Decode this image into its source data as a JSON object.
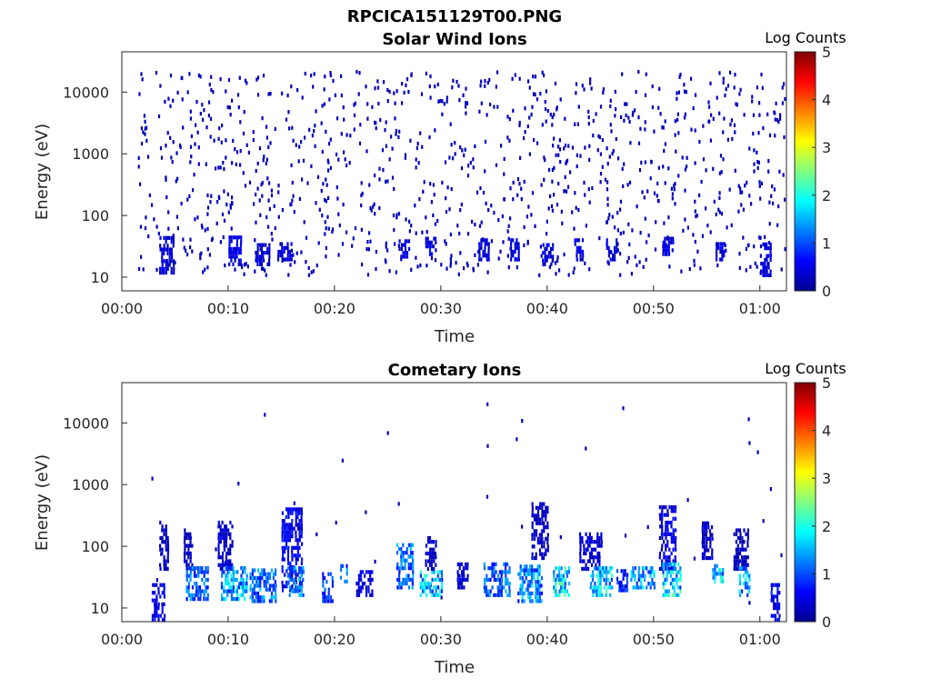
{
  "figure_title": "RPCICA151129T00.PNG",
  "colorbar": {
    "label": "Log Counts",
    "ticks": [
      "0",
      "1",
      "2",
      "3",
      "4",
      "5"
    ],
    "colormap": "jet"
  },
  "chart_data": [
    {
      "type": "heatmap",
      "title": "Solar Wind Ions",
      "xlabel": "Time",
      "ylabel": "Energy (eV)",
      "x_ticks": [
        "00:00",
        "00:10",
        "00:20",
        "00:30",
        "00:40",
        "00:50",
        "01:00"
      ],
      "y_ticks": [
        "10",
        "100",
        "1000",
        "10000"
      ],
      "y_scale": "log",
      "xlim_minutes": [
        0,
        62.5
      ],
      "ylim_eV": [
        6,
        45000
      ],
      "clim": [
        0,
        5
      ],
      "seed": 137,
      "background_points": 1100,
      "background_level": 0.3,
      "time_extent_minutes": [
        1.5,
        62.3
      ],
      "bands": [
        {
          "t0": 3.5,
          "t1": 4.8,
          "e0": 11,
          "e1": 45,
          "level": 0.45
        },
        {
          "t0": 10.0,
          "t1": 11.2,
          "e0": 15,
          "e1": 45,
          "level": 0.5
        },
        {
          "t0": 12.5,
          "t1": 13.8,
          "e0": 15,
          "e1": 35,
          "level": 0.4
        },
        {
          "t0": 14.6,
          "t1": 16.0,
          "e0": 18,
          "e1": 35,
          "level": 0.45
        },
        {
          "t0": 26.0,
          "t1": 27.0,
          "e0": 20,
          "e1": 40,
          "level": 0.45
        },
        {
          "t0": 28.5,
          "t1": 29.5,
          "e0": 22,
          "e1": 45,
          "level": 0.55
        },
        {
          "t0": 33.5,
          "t1": 34.5,
          "e0": 18,
          "e1": 40,
          "level": 0.45
        },
        {
          "t0": 36.5,
          "t1": 37.3,
          "e0": 18,
          "e1": 40,
          "level": 0.45
        },
        {
          "t0": 39.5,
          "t1": 40.5,
          "e0": 15,
          "e1": 35,
          "level": 0.45
        },
        {
          "t0": 42.5,
          "t1": 43.3,
          "e0": 18,
          "e1": 40,
          "level": 0.45
        },
        {
          "t0": 45.5,
          "t1": 46.5,
          "e0": 18,
          "e1": 40,
          "level": 0.45
        },
        {
          "t0": 50.8,
          "t1": 51.7,
          "e0": 22,
          "e1": 45,
          "level": 0.5
        },
        {
          "t0": 55.8,
          "t1": 56.6,
          "e0": 18,
          "e1": 35,
          "level": 0.45
        },
        {
          "t0": 60.0,
          "t1": 61.0,
          "e0": 10,
          "e1": 35,
          "level": 0.45
        }
      ]
    },
    {
      "type": "heatmap",
      "title": "Cometary Ions",
      "xlabel": "Time",
      "ylabel": "Energy (eV)",
      "x_ticks": [
        "00:00",
        "00:10",
        "00:20",
        "00:30",
        "00:40",
        "00:50",
        "01:00"
      ],
      "y_ticks": [
        "10",
        "100",
        "1000",
        "10000"
      ],
      "y_scale": "log",
      "xlim_minutes": [
        0,
        62.5
      ],
      "ylim_eV": [
        6,
        45000
      ],
      "clim": [
        0,
        5
      ],
      "seed": 911,
      "background_points": 40,
      "background_level": 0.3,
      "time_extent_minutes": [
        2.5,
        62.0
      ],
      "bands": [
        {
          "t0": 2.8,
          "t1": 4.0,
          "e0": 6,
          "e1": 25,
          "level": 0.55
        },
        {
          "t0": 3.5,
          "t1": 4.3,
          "e0": 40,
          "e1": 250,
          "level": 0.3
        },
        {
          "t0": 5.8,
          "t1": 6.6,
          "e0": 40,
          "e1": 180,
          "level": 0.3
        },
        {
          "t0": 6.0,
          "t1": 8.0,
          "e0": 13,
          "e1": 45,
          "level": 1.1
        },
        {
          "t0": 9.0,
          "t1": 10.3,
          "e0": 40,
          "e1": 250,
          "level": 0.35
        },
        {
          "t0": 9.3,
          "t1": 11.8,
          "e0": 13,
          "e1": 45,
          "level": 1.4
        },
        {
          "t0": 12.0,
          "t1": 14.5,
          "e0": 12,
          "e1": 40,
          "level": 1.2
        },
        {
          "t0": 15.0,
          "t1": 16.8,
          "e0": 18,
          "e1": 380,
          "level": 0.6
        },
        {
          "t0": 15.5,
          "t1": 17.0,
          "e0": 15,
          "e1": 45,
          "level": 1.2
        },
        {
          "t0": 18.8,
          "t1": 19.8,
          "e0": 12,
          "e1": 35,
          "level": 0.9
        },
        {
          "t0": 20.5,
          "t1": 21.2,
          "e0": 25,
          "e1": 45,
          "level": 1.1
        },
        {
          "t0": 22.0,
          "t1": 23.5,
          "e0": 15,
          "e1": 40,
          "level": 0.5
        },
        {
          "t0": 25.8,
          "t1": 27.3,
          "e0": 20,
          "e1": 100,
          "level": 1.2
        },
        {
          "t0": 28.0,
          "t1": 30.0,
          "e0": 15,
          "e1": 40,
          "level": 1.6
        },
        {
          "t0": 28.5,
          "t1": 29.5,
          "e0": 40,
          "e1": 140,
          "level": 0.35
        },
        {
          "t0": 31.5,
          "t1": 32.5,
          "e0": 20,
          "e1": 50,
          "level": 0.4
        },
        {
          "t0": 34.0,
          "t1": 36.5,
          "e0": 15,
          "e1": 50,
          "level": 1.1
        },
        {
          "t0": 37.2,
          "t1": 39.5,
          "e0": 12,
          "e1": 45,
          "level": 1.3
        },
        {
          "t0": 38.5,
          "t1": 40.0,
          "e0": 60,
          "e1": 500,
          "level": 0.35
        },
        {
          "t0": 40.5,
          "t1": 42.0,
          "e0": 15,
          "e1": 45,
          "level": 1.8
        },
        {
          "t0": 43.0,
          "t1": 45.0,
          "e0": 40,
          "e1": 150,
          "level": 0.45
        },
        {
          "t0": 44.0,
          "t1": 46.0,
          "e0": 15,
          "e1": 45,
          "level": 1.7
        },
        {
          "t0": 46.5,
          "t1": 47.5,
          "e0": 18,
          "e1": 40,
          "level": 0.8
        },
        {
          "t0": 47.8,
          "t1": 50.0,
          "e0": 20,
          "e1": 45,
          "level": 1.4
        },
        {
          "t0": 50.5,
          "t1": 52.0,
          "e0": 40,
          "e1": 450,
          "level": 0.5
        },
        {
          "t0": 50.8,
          "t1": 52.5,
          "e0": 15,
          "e1": 50,
          "level": 1.7
        },
        {
          "t0": 54.5,
          "t1": 55.5,
          "e0": 60,
          "e1": 220,
          "level": 0.35
        },
        {
          "t0": 55.5,
          "t1": 56.5,
          "e0": 25,
          "e1": 45,
          "level": 1.6
        },
        {
          "t0": 57.5,
          "t1": 58.8,
          "e0": 40,
          "e1": 180,
          "level": 0.3
        },
        {
          "t0": 58.0,
          "t1": 59.0,
          "e0": 15,
          "e1": 45,
          "level": 1.4
        },
        {
          "t0": 61.0,
          "t1": 61.8,
          "e0": 6,
          "e1": 22,
          "level": 0.6
        }
      ]
    }
  ]
}
